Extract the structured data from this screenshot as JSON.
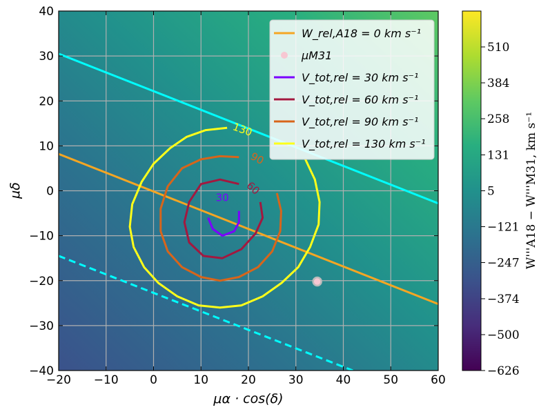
{
  "chart_data": {
    "type": "contour",
    "xlabel": "μα · cos(δ)",
    "ylabel": "μδ",
    "xlim": [
      -20,
      60
    ],
    "ylim": [
      -40,
      40
    ],
    "xticks": [
      "−20",
      "−10",
      "0",
      "10",
      "20",
      "30",
      "40",
      "50",
      "60"
    ],
    "yticks": [
      "40",
      "30",
      "20",
      "10",
      "0",
      "−10",
      "−20",
      "−30",
      "−40"
    ],
    "grid": true,
    "legend_position": "top-right",
    "legend": [
      {
        "kind": "line",
        "color": "#f5a623",
        "label": "W_rel,A18 = 0 km s⁻¹"
      },
      {
        "kind": "dot",
        "color": "#f7c7d2",
        "label": "μM31"
      },
      {
        "kind": "line",
        "color": "#7b00ff",
        "label": "V_tot,rel = 30 km s⁻¹"
      },
      {
        "kind": "line",
        "color": "#a3183f",
        "label": "V_tot,rel = 60 km s⁻¹"
      },
      {
        "kind": "line",
        "color": "#d8651a",
        "label": "V_tot,rel = 90 km s⁻¹"
      },
      {
        "kind": "line",
        "color": "#ffff1a",
        "label": "V_tot,rel = 130 km s⁻¹"
      }
    ],
    "lines": [
      {
        "name": "W_rel,A18 = 0",
        "color": "#f5a623",
        "style": "solid",
        "points": [
          [
            -20,
            8.2
          ],
          [
            60,
            -25.2
          ]
        ]
      },
      {
        "name": "cyan upper",
        "color": "#00ffff",
        "style": "solid",
        "points": [
          [
            -20,
            30.5
          ],
          [
            60,
            -2.8
          ]
        ]
      },
      {
        "name": "cyan lower",
        "color": "#00ffff",
        "style": "dashed",
        "points": [
          [
            -20,
            -14.5
          ],
          [
            42,
            -40
          ]
        ]
      }
    ],
    "contours": [
      {
        "level": 30,
        "color": "#7b00ff",
        "label": "30",
        "label_at": [
          14.5,
          -2.3
        ],
        "points": [
          [
            18,
            -4.5
          ],
          [
            18,
            -7
          ],
          [
            17,
            -9
          ],
          [
            14.5,
            -10
          ],
          [
            12.5,
            -8.5
          ],
          [
            11.5,
            -6
          ]
        ]
      },
      {
        "level": 60,
        "color": "#a3183f",
        "label": "60",
        "label_at": [
          20.5,
          0
        ],
        "points": [
          [
            18,
            1.5
          ],
          [
            14,
            2.5
          ],
          [
            10,
            1.5
          ],
          [
            7.5,
            -2.5
          ],
          [
            6.5,
            -7
          ],
          [
            7.5,
            -11.5
          ],
          [
            10.5,
            -14.5
          ],
          [
            14.5,
            -15
          ],
          [
            18.5,
            -13
          ],
          [
            21.5,
            -9.5
          ],
          [
            23,
            -6
          ],
          [
            22.5,
            -2.5
          ]
        ]
      },
      {
        "level": 90,
        "color": "#d8651a",
        "label": "90",
        "label_at": [
          21.5,
          6.5
        ],
        "points": [
          [
            18,
            7.5
          ],
          [
            14,
            7.7
          ],
          [
            10,
            7
          ],
          [
            6,
            5
          ],
          [
            3,
            1
          ],
          [
            1.5,
            -4
          ],
          [
            1.5,
            -9
          ],
          [
            3,
            -13.5
          ],
          [
            6,
            -17
          ],
          [
            10,
            -19.2
          ],
          [
            14,
            -20
          ],
          [
            18,
            -19.2
          ],
          [
            22,
            -17
          ],
          [
            25,
            -13.5
          ],
          [
            26.7,
            -9
          ],
          [
            26.9,
            -4.5
          ],
          [
            26,
            -0.5
          ]
        ]
      },
      {
        "level": 130,
        "color": "#ffff1a",
        "label": "130",
        "label_at": [
          18.5,
          12.9
        ],
        "points": [
          [
            15.5,
            14
          ],
          [
            11,
            13.5
          ],
          [
            7,
            12
          ],
          [
            3.5,
            9.5
          ],
          [
            0,
            6
          ],
          [
            -2.5,
            2
          ],
          [
            -4.5,
            -3
          ],
          [
            -5,
            -8
          ],
          [
            -4.2,
            -12.5
          ],
          [
            -2,
            -17
          ],
          [
            1,
            -20.5
          ],
          [
            5,
            -23.5
          ],
          [
            9.5,
            -25.5
          ],
          [
            14,
            -26
          ],
          [
            18.5,
            -25.5
          ],
          [
            23,
            -23.5
          ],
          [
            27,
            -20.5
          ],
          [
            30.5,
            -17
          ],
          [
            33,
            -12.5
          ],
          [
            34.8,
            -7.5
          ],
          [
            35,
            -2.5
          ],
          [
            34,
            2.5
          ],
          [
            32,
            7
          ]
        ]
      }
    ],
    "points": [
      {
        "name": "μM31",
        "color": "#f7c7d2",
        "x": 34.5,
        "y": -20.2
      }
    ],
    "background": {
      "description_of_field": "linear gradient of W'''A18 − W'''M31 increasing toward upper-right",
      "value_range": [
        -626,
        636
      ]
    },
    "colorbar": {
      "label": "W'''A18 − W'''M31, km s⁻¹",
      "ticks": [
        "510",
        "384",
        "258",
        "131",
        "5",
        "−121",
        "−247",
        "−374",
        "−500",
        "−626"
      ],
      "tick_values": [
        510,
        384,
        258,
        131,
        5,
        -121,
        -247,
        -374,
        -500,
        -626
      ],
      "colors": [
        "#440154",
        "#472d7b",
        "#3b528b",
        "#2c728e",
        "#21918c",
        "#28ae80",
        "#5ec962",
        "#addc30",
        "#fde725"
      ]
    }
  }
}
